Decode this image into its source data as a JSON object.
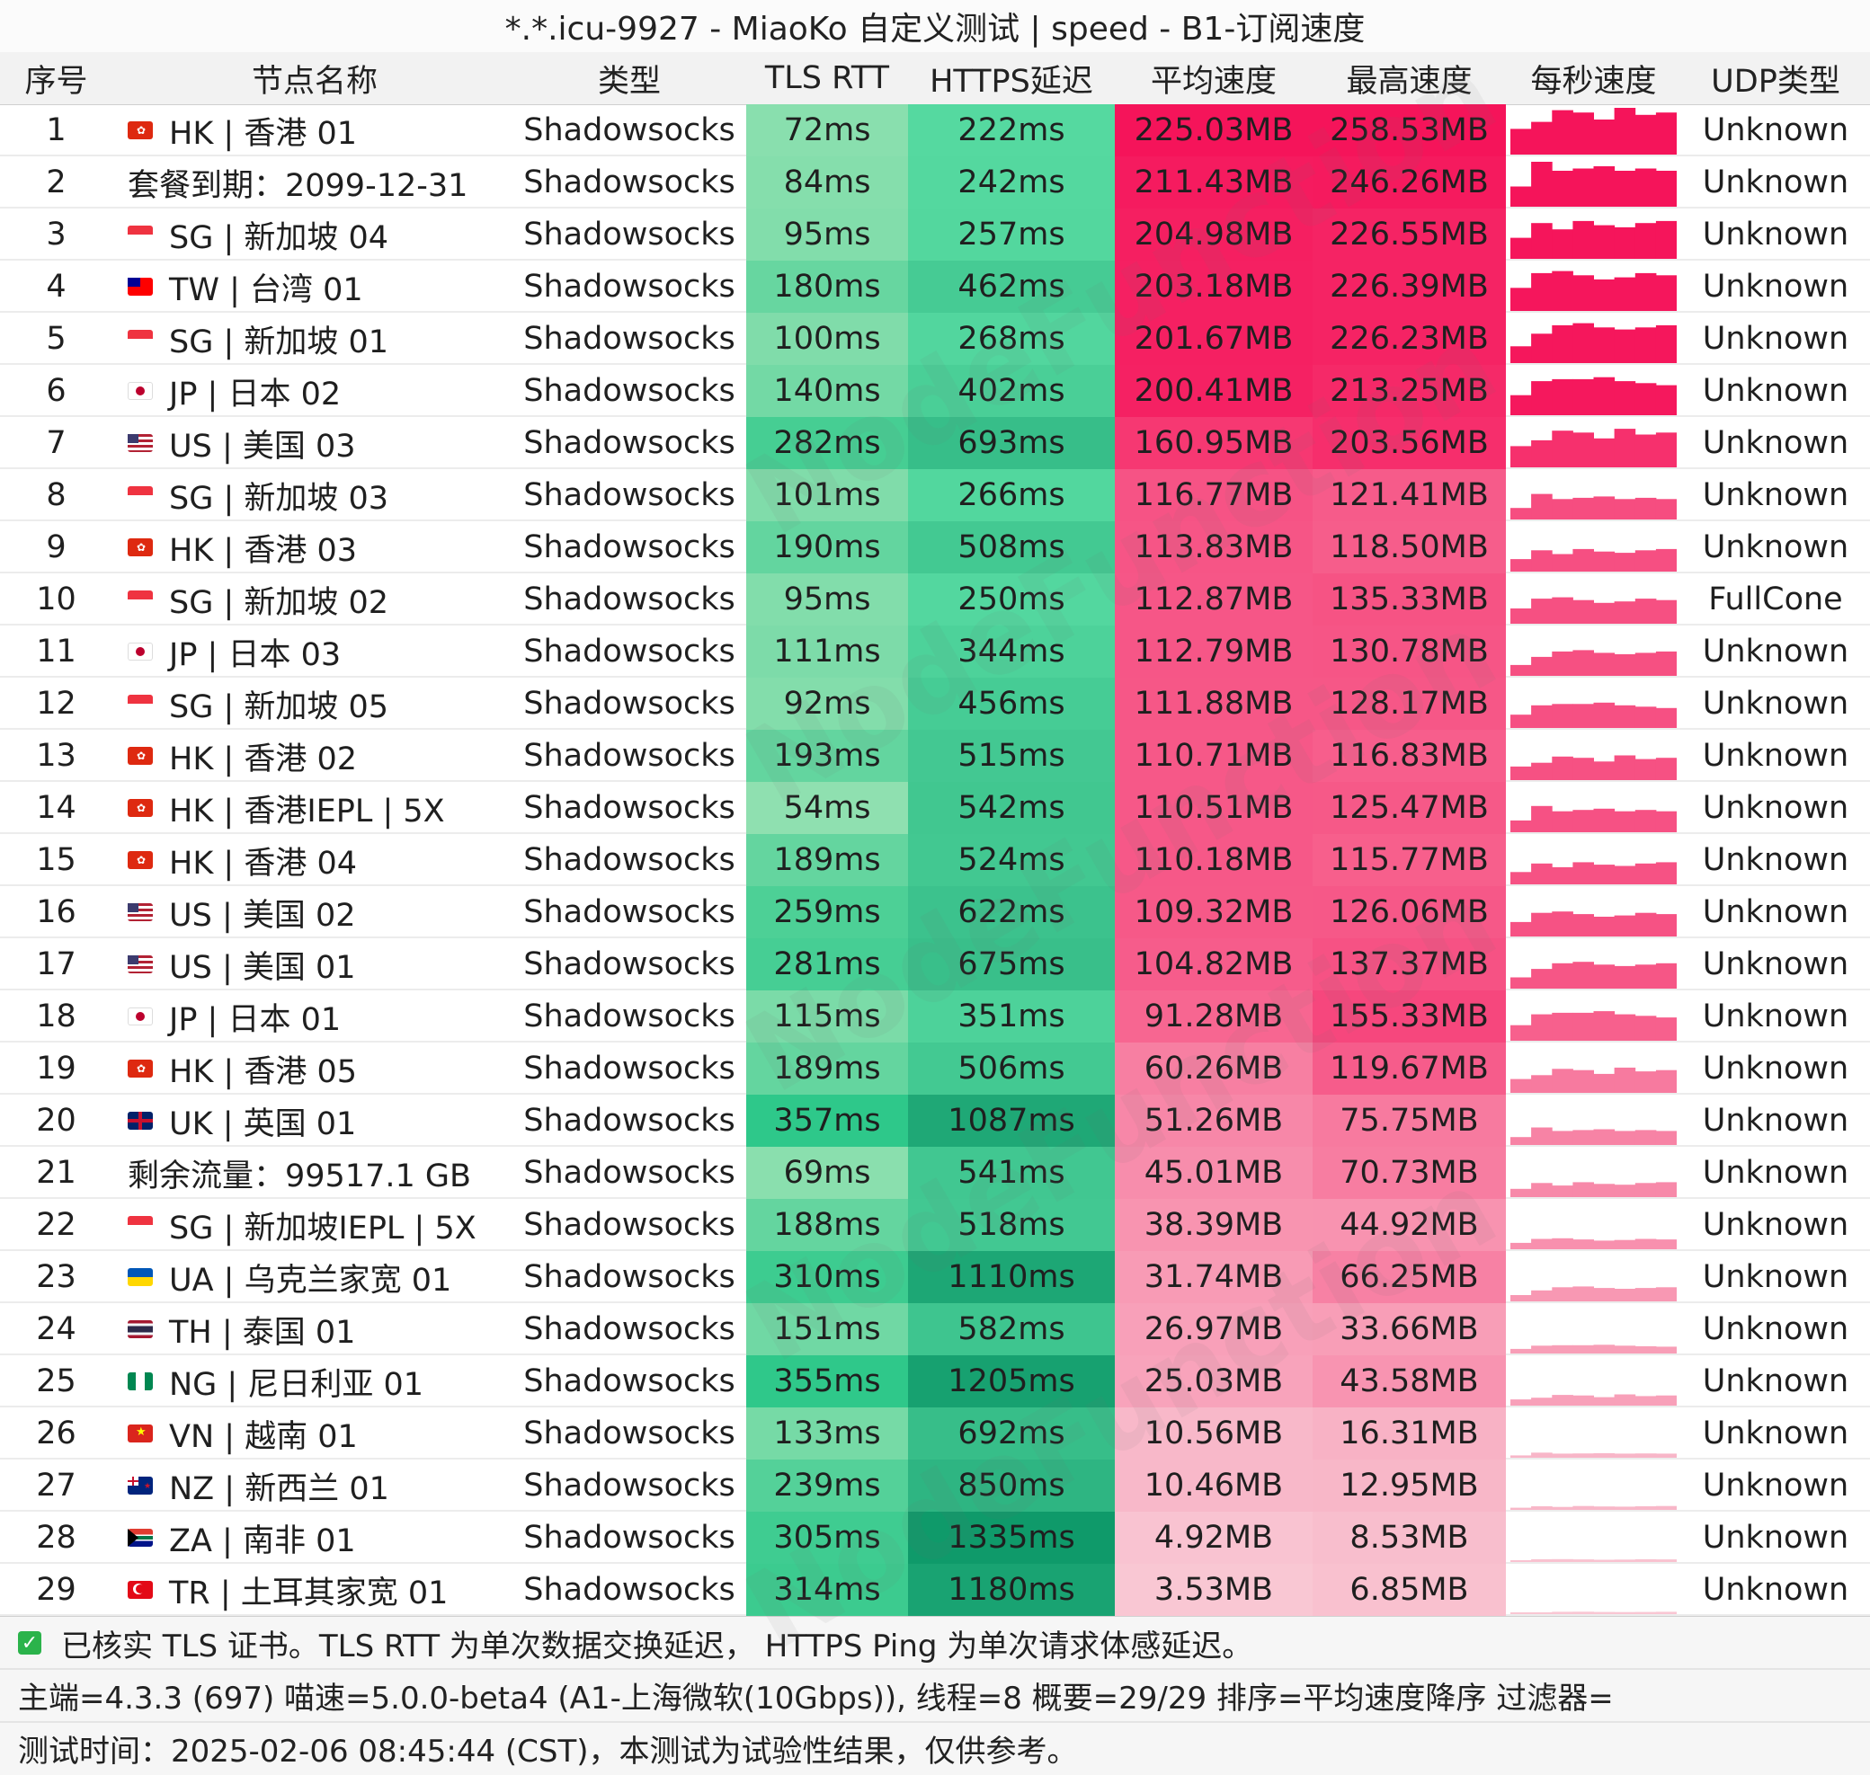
{
  "title": "*.*.icu-9927 - MiaoKo 自定义测试 | speed - B1-订阅速度",
  "watermark": "NodeFunction",
  "columns": [
    "序号",
    "节点名称",
    "类型",
    "TLS RTT",
    "HTTPS延迟",
    "平均速度",
    "最高速度",
    "每秒速度",
    "UDP类型"
  ],
  "rows": [
    {
      "id": "1",
      "flag": "HK",
      "name": "HK | 香港 01",
      "type": "Shadowsocks",
      "tls": "72ms",
      "https": "222ms",
      "avg": "225.03MB",
      "max": "258.53MB",
      "udp": "Unknown"
    },
    {
      "id": "2",
      "flag": "",
      "name": "套餐到期：2099-12-31",
      "type": "Shadowsocks",
      "tls": "84ms",
      "https": "242ms",
      "avg": "211.43MB",
      "max": "246.26MB",
      "udp": "Unknown"
    },
    {
      "id": "3",
      "flag": "SG",
      "name": "SG | 新加坡 04",
      "type": "Shadowsocks",
      "tls": "95ms",
      "https": "257ms",
      "avg": "204.98MB",
      "max": "226.55MB",
      "udp": "Unknown"
    },
    {
      "id": "4",
      "flag": "TW",
      "name": "TW | 台湾 01",
      "type": "Shadowsocks",
      "tls": "180ms",
      "https": "462ms",
      "avg": "203.18MB",
      "max": "226.39MB",
      "udp": "Unknown"
    },
    {
      "id": "5",
      "flag": "SG",
      "name": "SG | 新加坡 01",
      "type": "Shadowsocks",
      "tls": "100ms",
      "https": "268ms",
      "avg": "201.67MB",
      "max": "226.23MB",
      "udp": "Unknown"
    },
    {
      "id": "6",
      "flag": "JP",
      "name": "JP | 日本 02",
      "type": "Shadowsocks",
      "tls": "140ms",
      "https": "402ms",
      "avg": "200.41MB",
      "max": "213.25MB",
      "udp": "Unknown"
    },
    {
      "id": "7",
      "flag": "US",
      "name": "US | 美国 03",
      "type": "Shadowsocks",
      "tls": "282ms",
      "https": "693ms",
      "avg": "160.95MB",
      "max": "203.56MB",
      "udp": "Unknown"
    },
    {
      "id": "8",
      "flag": "SG",
      "name": "SG | 新加坡 03",
      "type": "Shadowsocks",
      "tls": "101ms",
      "https": "266ms",
      "avg": "116.77MB",
      "max": "121.41MB",
      "udp": "Unknown"
    },
    {
      "id": "9",
      "flag": "HK",
      "name": "HK | 香港 03",
      "type": "Shadowsocks",
      "tls": "190ms",
      "https": "508ms",
      "avg": "113.83MB",
      "max": "118.50MB",
      "udp": "Unknown"
    },
    {
      "id": "10",
      "flag": "SG",
      "name": "SG | 新加坡 02",
      "type": "Shadowsocks",
      "tls": "95ms",
      "https": "250ms",
      "avg": "112.87MB",
      "max": "135.33MB",
      "udp": "FullCone"
    },
    {
      "id": "11",
      "flag": "JP",
      "name": "JP | 日本 03",
      "type": "Shadowsocks",
      "tls": "111ms",
      "https": "344ms",
      "avg": "112.79MB",
      "max": "130.78MB",
      "udp": "Unknown"
    },
    {
      "id": "12",
      "flag": "SG",
      "name": "SG | 新加坡 05",
      "type": "Shadowsocks",
      "tls": "92ms",
      "https": "456ms",
      "avg": "111.88MB",
      "max": "128.17MB",
      "udp": "Unknown"
    },
    {
      "id": "13",
      "flag": "HK",
      "name": "HK | 香港 02",
      "type": "Shadowsocks",
      "tls": "193ms",
      "https": "515ms",
      "avg": "110.71MB",
      "max": "116.83MB",
      "udp": "Unknown"
    },
    {
      "id": "14",
      "flag": "HK",
      "name": "HK | 香港IEPL | 5X",
      "type": "Shadowsocks",
      "tls": "54ms",
      "https": "542ms",
      "avg": "110.51MB",
      "max": "125.47MB",
      "udp": "Unknown"
    },
    {
      "id": "15",
      "flag": "HK",
      "name": "HK | 香港 04",
      "type": "Shadowsocks",
      "tls": "189ms",
      "https": "524ms",
      "avg": "110.18MB",
      "max": "115.77MB",
      "udp": "Unknown"
    },
    {
      "id": "16",
      "flag": "US",
      "name": "US | 美国 02",
      "type": "Shadowsocks",
      "tls": "259ms",
      "https": "622ms",
      "avg": "109.32MB",
      "max": "126.06MB",
      "udp": "Unknown"
    },
    {
      "id": "17",
      "flag": "US",
      "name": "US | 美国 01",
      "type": "Shadowsocks",
      "tls": "281ms",
      "https": "675ms",
      "avg": "104.82MB",
      "max": "137.37MB",
      "udp": "Unknown"
    },
    {
      "id": "18",
      "flag": "JP",
      "name": "JP | 日本 01",
      "type": "Shadowsocks",
      "tls": "115ms",
      "https": "351ms",
      "avg": "91.28MB",
      "max": "155.33MB",
      "udp": "Unknown"
    },
    {
      "id": "19",
      "flag": "HK",
      "name": "HK | 香港 05",
      "type": "Shadowsocks",
      "tls": "189ms",
      "https": "506ms",
      "avg": "60.26MB",
      "max": "119.67MB",
      "udp": "Unknown"
    },
    {
      "id": "20",
      "flag": "UK",
      "name": "UK | 英国 01",
      "type": "Shadowsocks",
      "tls": "357ms",
      "https": "1087ms",
      "avg": "51.26MB",
      "max": "75.75MB",
      "udp": "Unknown"
    },
    {
      "id": "21",
      "flag": "",
      "name": "剩余流量：99517.1 GB",
      "type": "Shadowsocks",
      "tls": "69ms",
      "https": "541ms",
      "avg": "45.01MB",
      "max": "70.73MB",
      "udp": "Unknown"
    },
    {
      "id": "22",
      "flag": "SG",
      "name": "SG | 新加坡IEPL | 5X",
      "type": "Shadowsocks",
      "tls": "188ms",
      "https": "518ms",
      "avg": "38.39MB",
      "max": "44.92MB",
      "udp": "Unknown"
    },
    {
      "id": "23",
      "flag": "UA",
      "name": "UA | 乌克兰家宽 01",
      "type": "Shadowsocks",
      "tls": "310ms",
      "https": "1110ms",
      "avg": "31.74MB",
      "max": "66.25MB",
      "udp": "Unknown"
    },
    {
      "id": "24",
      "flag": "TH",
      "name": "TH | 泰国 01",
      "type": "Shadowsocks",
      "tls": "151ms",
      "https": "582ms",
      "avg": "26.97MB",
      "max": "33.66MB",
      "udp": "Unknown"
    },
    {
      "id": "25",
      "flag": "NG",
      "name": "NG | 尼日利亚 01",
      "type": "Shadowsocks",
      "tls": "355ms",
      "https": "1205ms",
      "avg": "25.03MB",
      "max": "43.58MB",
      "udp": "Unknown"
    },
    {
      "id": "26",
      "flag": "VN",
      "name": "VN | 越南 01",
      "type": "Shadowsocks",
      "tls": "133ms",
      "https": "692ms",
      "avg": "10.56MB",
      "max": "16.31MB",
      "udp": "Unknown"
    },
    {
      "id": "27",
      "flag": "NZ",
      "name": "NZ | 新西兰 01",
      "type": "Shadowsocks",
      "tls": "239ms",
      "https": "850ms",
      "avg": "10.46MB",
      "max": "12.95MB",
      "udp": "Unknown"
    },
    {
      "id": "28",
      "flag": "ZA",
      "name": "ZA | 南非 01",
      "type": "Shadowsocks",
      "tls": "305ms",
      "https": "1335ms",
      "avg": "4.92MB",
      "max": "8.53MB",
      "udp": "Unknown"
    },
    {
      "id": "29",
      "flag": "TR",
      "name": "TR | 土耳其家宽 01",
      "type": "Shadowsocks",
      "tls": "314ms",
      "https": "1180ms",
      "avg": "3.53MB",
      "max": "6.85MB",
      "udp": "Unknown"
    }
  ],
  "footer": {
    "line1": "已核实 TLS 证书。TLS RTT 为单次数据交换延迟， HTTPS Ping 为单次请求体感延迟。",
    "line2": "主端=4.3.3 (697) 喵速=5.0.0-beta4 (A1-上海微软(10Gbps)), 线程=8 概要=29/29 排序=平均速度降序 过滤器=",
    "line3": "测试时间：2025-02-06 08:45:44 (CST)，本测试为试验性结果，仅供参考。"
  },
  "colors": {
    "tls_low": "#8fe0b0",
    "tls_high": "#2ec88a",
    "https_low": "#55d9a0",
    "https_high": "#0f9a6a",
    "speed_high": "#f5145a",
    "speed_low": "#f9d7de",
    "check": "#2bb34b"
  }
}
